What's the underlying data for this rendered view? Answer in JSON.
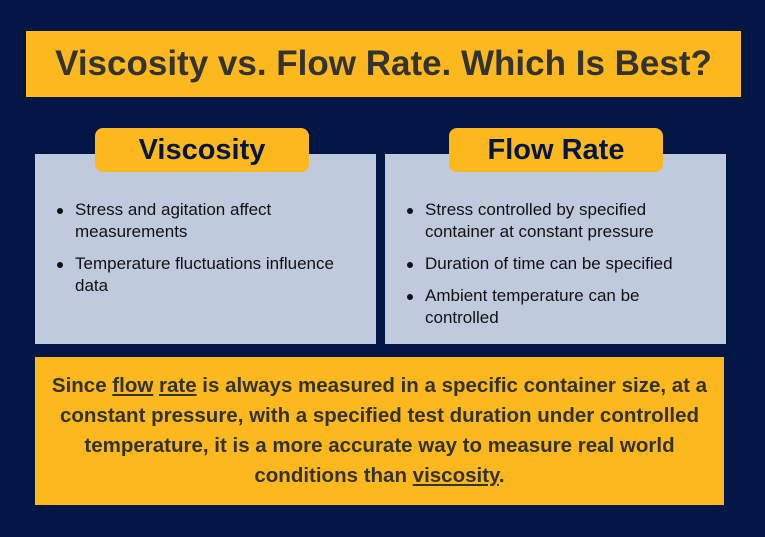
{
  "title": "Viscosity vs. Flow Rate. Which Is Best?",
  "viscosity": {
    "label": "Viscosity",
    "points": [
      "Stress and agitation affect measurements",
      "Temperature fluctuations influence data"
    ]
  },
  "flow_rate": {
    "label": "Flow Rate",
    "points": [
      "Stress controlled by specified container at constant pressure",
      "Duration of time can be specified",
      "Ambient temperature can be controlled"
    ]
  },
  "summary": {
    "t1": "Since ",
    "u1": "flow",
    "t2": " ",
    "u2": "rate",
    "t3": " is always measured in a specific container size, at a constant pressure, with a specified test duration under controlled temperature, it is a more accurate way to measure real world conditions than ",
    "u3": "viscosity",
    "t4": "."
  },
  "colors": {
    "background": "#011645",
    "accent": "#FDB81E",
    "panel": "#BFCBDD"
  }
}
